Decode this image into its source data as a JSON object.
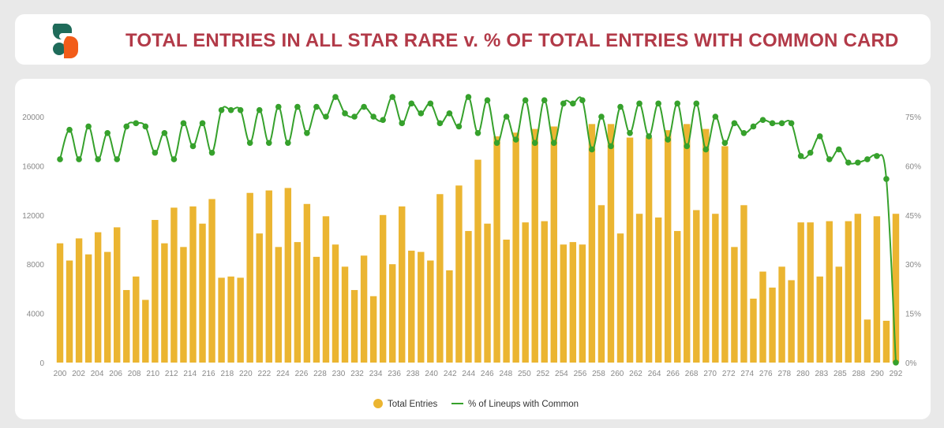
{
  "header": {
    "title": "TOTAL ENTRIES IN ALL STAR RARE v. % OF TOTAL ENTRIES WITH COMMON CARD"
  },
  "colors": {
    "bar": "#ebb531",
    "line": "#36a12c",
    "title": "#b23a48"
  },
  "chart_data": {
    "type": "bar+line",
    "title": "TOTAL ENTRIES IN ALL STAR RARE v. % OF TOTAL ENTRIES WITH COMMON CARD",
    "left_axis": {
      "ticks": [
        "0",
        "4000",
        "8000",
        "12000",
        "16000",
        "20000"
      ],
      "range": [
        0,
        20000
      ]
    },
    "right_axis": {
      "ticks": [
        "0%",
        "15%",
        "30%",
        "45%",
        "60%",
        "75%"
      ],
      "range": [
        0,
        75
      ]
    },
    "x_tick_labels": [
      "200",
      "202",
      "204",
      "206",
      "208",
      "210",
      "212",
      "214",
      "216",
      "218",
      "220",
      "222",
      "224",
      "226",
      "228",
      "230",
      "232",
      "234",
      "236",
      "238",
      "240",
      "242",
      "244",
      "246",
      "248",
      "250",
      "252",
      "254",
      "256",
      "258",
      "260",
      "262",
      "264",
      "266",
      "268",
      "270",
      "272",
      "274",
      "276",
      "278",
      "280",
      "283",
      "285",
      "288",
      "290",
      "292"
    ],
    "legend": [
      "Total Entries",
      "% of Lineups with Common"
    ],
    "series": [
      {
        "name": "Total Entries",
        "kind": "bar",
        "axis": "left",
        "values": [
          9700,
          8300,
          10100,
          8800,
          10600,
          9000,
          11000,
          5900,
          7000,
          5100,
          11600,
          9700,
          12600,
          9400,
          12700,
          11300,
          13300,
          6900,
          7000,
          6900,
          13800,
          10500,
          14000,
          9400,
          14200,
          9800,
          12900,
          8600,
          11900,
          9600,
          7800,
          5900,
          8700,
          5400,
          12000,
          8000,
          12700,
          9100,
          9000,
          8300,
          13700,
          7500,
          14400,
          10700,
          16500,
          11300,
          18400,
          10000,
          18700,
          11400,
          19000,
          11500,
          19200,
          9600,
          9800,
          9600,
          19400,
          12800,
          19400,
          10500,
          18300,
          12100,
          18300,
          11800,
          18900,
          10700,
          19400,
          12400,
          19000,
          12100,
          17600,
          9400,
          12800,
          5200,
          7400,
          6100,
          7800,
          6700,
          11400,
          11400,
          7000,
          11500,
          7800,
          11500,
          12100,
          3500,
          11900,
          3400,
          12100
        ]
      },
      {
        "name": "% of Lineups with Common",
        "kind": "line",
        "axis": "right",
        "values": [
          62,
          71,
          62,
          72,
          62,
          70,
          62,
          72,
          73,
          72,
          64,
          70,
          62,
          73,
          66,
          73,
          64,
          77,
          77,
          77,
          67,
          77,
          67,
          78,
          67,
          78,
          70,
          78,
          75,
          81,
          76,
          75,
          78,
          75,
          74,
          81,
          73,
          79,
          76,
          79,
          73,
          76,
          72,
          81,
          70,
          80,
          67,
          75,
          68,
          80,
          67,
          80,
          67,
          79,
          79,
          80,
          65,
          75,
          66,
          78,
          70,
          79,
          69,
          79,
          68,
          79,
          66,
          79,
          65,
          75,
          67,
          73,
          70,
          72,
          74,
          73,
          73,
          73,
          63,
          64,
          69,
          62,
          65,
          61,
          61,
          62,
          63,
          56,
          0
        ]
      }
    ]
  }
}
